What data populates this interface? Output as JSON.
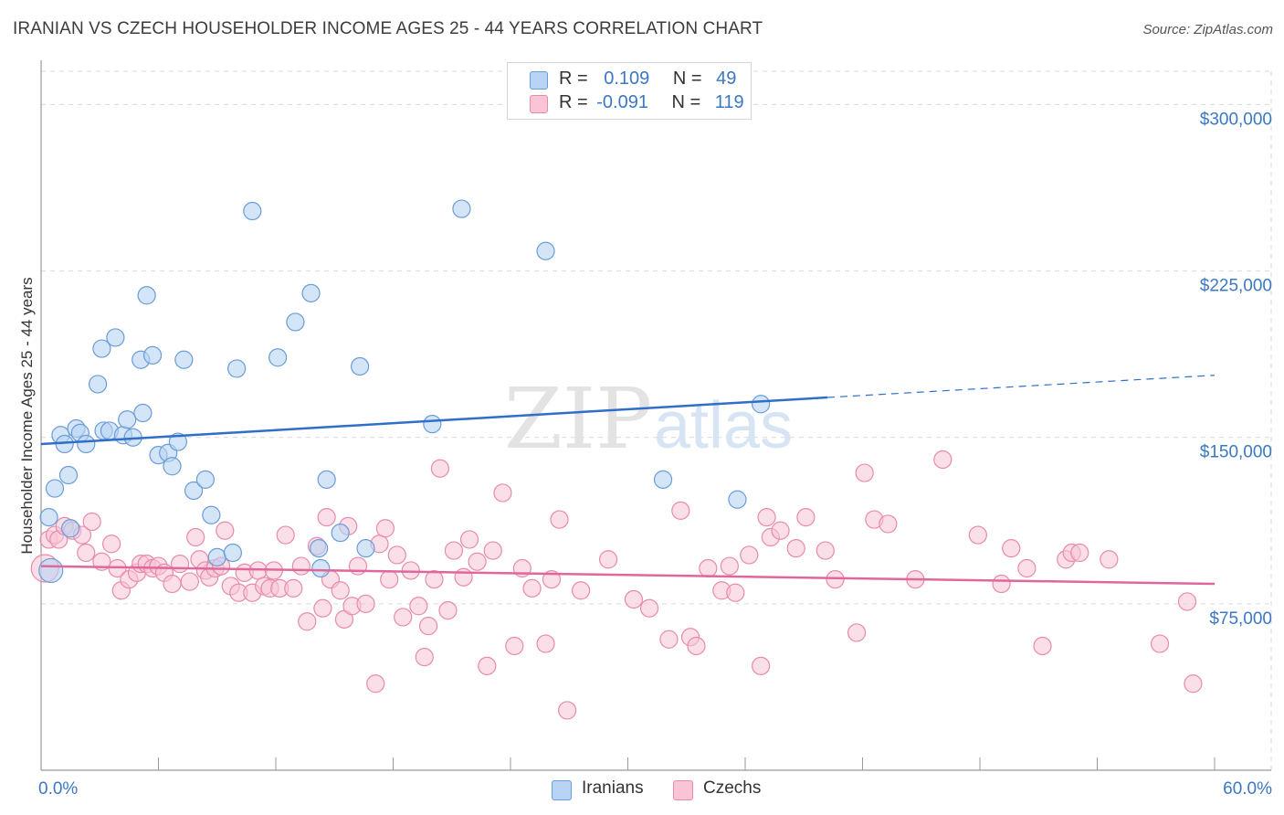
{
  "title": "IRANIAN VS CZECH HOUSEHOLDER INCOME AGES 25 - 44 YEARS CORRELATION CHART",
  "source": "Source: ZipAtlas.com",
  "watermark": {
    "zip": "ZIP",
    "atlas": "atlas"
  },
  "legend": {
    "rows": [
      {
        "r_label": "R =",
        "r_value": "0.109",
        "n_label": "N =",
        "n_value": "49"
      },
      {
        "r_label": "R =",
        "r_value": "-0.091",
        "n_label": "N =",
        "n_value": "119"
      }
    ],
    "bottom": [
      "Iranians",
      "Czechs"
    ]
  },
  "colors": {
    "blue_fill": "#b8d3f4",
    "blue_stroke": "#6a9cd8",
    "blue_line": "#2f6fca",
    "pink_fill": "#f8c4d6",
    "pink_stroke": "#e98aaa",
    "pink_line": "#e0679a",
    "tick_text": "#3b78c3",
    "grid": "#d9d9d9"
  },
  "chart_data": {
    "type": "scatter",
    "title": "IRANIAN VS CZECH HOUSEHOLDER INCOME AGES 25 - 44 YEARS CORRELATION CHART",
    "xlabel": "",
    "ylabel": "Householder Income Ages 25 - 44 years",
    "xlim": [
      0,
      60
    ],
    "ylim": [
      0,
      315000
    ],
    "x_tick_labels": [
      "0.0%",
      "60.0%"
    ],
    "y_ticks": [
      {
        "value": 75000,
        "label": "$75,000"
      },
      {
        "value": 150000,
        "label": "$150,000"
      },
      {
        "value": 225000,
        "label": "$225,000"
      },
      {
        "value": 300000,
        "label": "$300,000"
      }
    ],
    "series": [
      {
        "name": "Iranians",
        "r": 0.109,
        "n": 49,
        "trend": {
          "x0": 0,
          "y0": 147000,
          "x1": 40.2,
          "y1": 168000,
          "x_dash_end": 60,
          "y_dash_end": 178000
        },
        "points": [
          [
            0.4,
            114000
          ],
          [
            0.5,
            90000
          ],
          [
            0.7,
            127000
          ],
          [
            1.0,
            151000
          ],
          [
            1.2,
            147000
          ],
          [
            1.4,
            133000
          ],
          [
            1.5,
            109000
          ],
          [
            1.8,
            154000
          ],
          [
            2.0,
            152000
          ],
          [
            2.3,
            147000
          ],
          [
            2.9,
            174000
          ],
          [
            3.1,
            190000
          ],
          [
            3.2,
            153000
          ],
          [
            3.5,
            153000
          ],
          [
            3.8,
            195000
          ],
          [
            4.2,
            151000
          ],
          [
            4.4,
            158000
          ],
          [
            4.7,
            150000
          ],
          [
            5.1,
            185000
          ],
          [
            5.2,
            161000
          ],
          [
            5.4,
            214000
          ],
          [
            5.7,
            187000
          ],
          [
            6.0,
            142000
          ],
          [
            6.5,
            143000
          ],
          [
            6.7,
            137000
          ],
          [
            7.0,
            148000
          ],
          [
            7.3,
            185000
          ],
          [
            7.8,
            126000
          ],
          [
            8.4,
            131000
          ],
          [
            8.7,
            115000
          ],
          [
            9.0,
            96000
          ],
          [
            9.8,
            98000
          ],
          [
            10.0,
            181000
          ],
          [
            10.8,
            252000
          ],
          [
            12.1,
            186000
          ],
          [
            13.0,
            202000
          ],
          [
            13.8,
            215000
          ],
          [
            14.2,
            100000
          ],
          [
            14.3,
            91000
          ],
          [
            14.6,
            131000
          ],
          [
            15.3,
            107000
          ],
          [
            16.3,
            182000
          ],
          [
            16.6,
            100000
          ],
          [
            20.0,
            156000
          ],
          [
            21.5,
            253000
          ],
          [
            25.8,
            234000
          ],
          [
            31.8,
            131000
          ],
          [
            35.6,
            122000
          ],
          [
            36.8,
            165000
          ]
        ]
      },
      {
        "name": "Czechs",
        "r": -0.091,
        "n": 119,
        "trend": {
          "x0": 0,
          "y0": 92000,
          "x1": 60,
          "y1": 84000
        },
        "points": [
          [
            0.2,
            91000
          ],
          [
            0.4,
            104000
          ],
          [
            0.7,
            106000
          ],
          [
            0.9,
            104000
          ],
          [
            1.2,
            110000
          ],
          [
            1.6,
            108000
          ],
          [
            2.1,
            106000
          ],
          [
            2.3,
            98000
          ],
          [
            2.6,
            112000
          ],
          [
            3.1,
            94000
          ],
          [
            3.6,
            102000
          ],
          [
            3.9,
            91000
          ],
          [
            4.1,
            81000
          ],
          [
            4.5,
            86000
          ],
          [
            4.9,
            89000
          ],
          [
            5.1,
            93000
          ],
          [
            5.4,
            93000
          ],
          [
            5.7,
            91000
          ],
          [
            6.0,
            92000
          ],
          [
            6.3,
            89000
          ],
          [
            6.7,
            84000
          ],
          [
            7.1,
            93000
          ],
          [
            7.6,
            85000
          ],
          [
            7.9,
            105000
          ],
          [
            8.1,
            95000
          ],
          [
            8.4,
            90000
          ],
          [
            8.6,
            87000
          ],
          [
            8.9,
            91000
          ],
          [
            9.2,
            92000
          ],
          [
            9.4,
            108000
          ],
          [
            9.7,
            83000
          ],
          [
            10.1,
            80000
          ],
          [
            10.4,
            89000
          ],
          [
            10.8,
            80000
          ],
          [
            11.1,
            90000
          ],
          [
            11.4,
            83000
          ],
          [
            11.7,
            82000
          ],
          [
            11.9,
            90000
          ],
          [
            12.2,
            82000
          ],
          [
            12.5,
            106000
          ],
          [
            12.9,
            82000
          ],
          [
            13.3,
            92000
          ],
          [
            13.6,
            67000
          ],
          [
            14.1,
            101000
          ],
          [
            14.4,
            73000
          ],
          [
            14.6,
            114000
          ],
          [
            14.8,
            86000
          ],
          [
            15.3,
            81000
          ],
          [
            15.5,
            68000
          ],
          [
            15.7,
            110000
          ],
          [
            15.9,
            74000
          ],
          [
            16.2,
            92000
          ],
          [
            16.6,
            75000
          ],
          [
            17.1,
            39000
          ],
          [
            17.3,
            102000
          ],
          [
            17.6,
            109000
          ],
          [
            17.8,
            86000
          ],
          [
            18.2,
            97000
          ],
          [
            18.5,
            69000
          ],
          [
            18.9,
            90000
          ],
          [
            19.3,
            74000
          ],
          [
            19.6,
            51000
          ],
          [
            19.8,
            65000
          ],
          [
            20.1,
            86000
          ],
          [
            20.4,
            136000
          ],
          [
            20.8,
            72000
          ],
          [
            21.1,
            99000
          ],
          [
            21.6,
            87000
          ],
          [
            21.9,
            104000
          ],
          [
            22.3,
            94000
          ],
          [
            22.8,
            47000
          ],
          [
            23.1,
            99000
          ],
          [
            23.6,
            125000
          ],
          [
            24.2,
            56000
          ],
          [
            24.6,
            91000
          ],
          [
            25.1,
            82000
          ],
          [
            25.8,
            57000
          ],
          [
            26.1,
            86000
          ],
          [
            26.5,
            113000
          ],
          [
            26.9,
            27000
          ],
          [
            27.6,
            81000
          ],
          [
            29.0,
            95000
          ],
          [
            30.3,
            77000
          ],
          [
            31.1,
            73000
          ],
          [
            32.1,
            59000
          ],
          [
            32.7,
            117000
          ],
          [
            33.2,
            60000
          ],
          [
            33.5,
            56000
          ],
          [
            34.1,
            91000
          ],
          [
            34.8,
            81000
          ],
          [
            35.2,
            92000
          ],
          [
            35.5,
            80000
          ],
          [
            36.2,
            97000
          ],
          [
            36.8,
            47000
          ],
          [
            37.1,
            114000
          ],
          [
            37.3,
            105000
          ],
          [
            37.8,
            108000
          ],
          [
            38.6,
            100000
          ],
          [
            39.1,
            114000
          ],
          [
            40.1,
            99000
          ],
          [
            40.6,
            86000
          ],
          [
            41.7,
            62000
          ],
          [
            42.1,
            134000
          ],
          [
            42.6,
            113000
          ],
          [
            43.3,
            111000
          ],
          [
            44.7,
            86000
          ],
          [
            46.1,
            140000
          ],
          [
            47.9,
            106000
          ],
          [
            49.1,
            84000
          ],
          [
            49.6,
            100000
          ],
          [
            50.4,
            91000
          ],
          [
            51.2,
            56000
          ],
          [
            52.4,
            95000
          ],
          [
            52.7,
            98000
          ],
          [
            53.1,
            98000
          ],
          [
            54.6,
            95000
          ],
          [
            57.2,
            57000
          ],
          [
            58.6,
            76000
          ],
          [
            58.9,
            39000
          ]
        ]
      }
    ]
  }
}
